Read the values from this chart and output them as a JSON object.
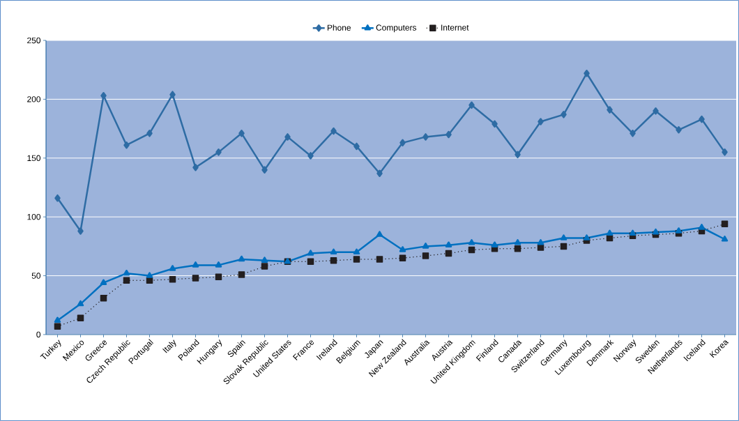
{
  "chart_data": {
    "type": "line",
    "categories": [
      "Turkey",
      "Mexico",
      "Greece",
      "Czech Republic",
      "Portugal",
      "Italy",
      "Poland",
      "Hungary",
      "Spain",
      "Slovak Republic",
      "United States",
      "France",
      "Ireland",
      "Belgium",
      "Japan",
      "New Zealand",
      "Australia",
      "Austria",
      "United Kingdom",
      "Finland",
      "Canada",
      "Switzerland",
      "Germany",
      "Luxembourg",
      "Denmark",
      "Norway",
      "Sweden",
      "Netherlands",
      "Iceland",
      "Korea"
    ],
    "series": [
      {
        "name": "Phone",
        "color": "#2e6ca4",
        "marker": "diamond",
        "line_style": "solid",
        "values": [
          116,
          88,
          203,
          161,
          171,
          204,
          142,
          155,
          171,
          140,
          168,
          152,
          173,
          160,
          137,
          163,
          168,
          170,
          195,
          179,
          153,
          181,
          187,
          222,
          191,
          171,
          190,
          174,
          183,
          155
        ]
      },
      {
        "name": "Computers",
        "color": "#0070c0",
        "marker": "triangle",
        "line_style": "solid",
        "values": [
          12,
          26,
          44,
          52,
          50,
          56,
          59,
          59,
          64,
          63,
          62,
          69,
          70,
          70,
          85,
          72,
          75,
          76,
          78,
          76,
          78,
          78,
          82,
          82,
          86,
          86,
          87,
          88,
          91,
          81
        ]
      },
      {
        "name": "Internet",
        "color": "#231f20",
        "marker": "square",
        "line_style": "dotted",
        "values": [
          7,
          14,
          31,
          46,
          46,
          47,
          48,
          49,
          51,
          58,
          62,
          62,
          63,
          64,
          64,
          65,
          67,
          69,
          72,
          73,
          73,
          74,
          75,
          80,
          82,
          84,
          85,
          86,
          88,
          94
        ]
      }
    ],
    "ylim": [
      0,
      250
    ],
    "yticks": [
      0,
      50,
      100,
      150,
      200,
      250
    ],
    "grid": "y",
    "legend": "top"
  }
}
